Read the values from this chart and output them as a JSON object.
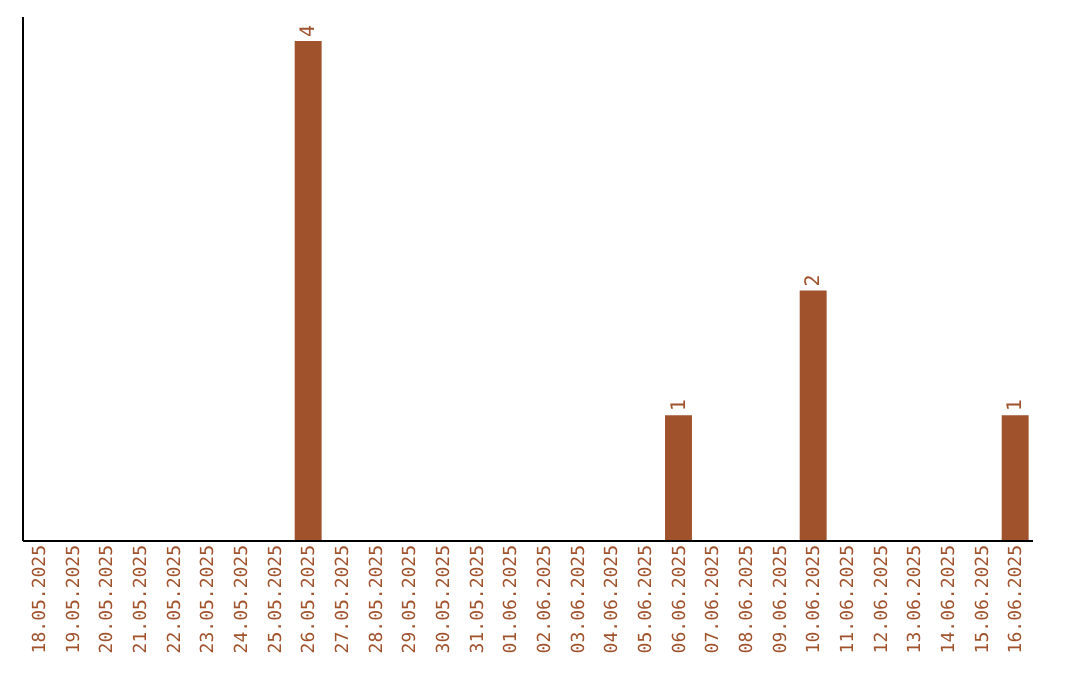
{
  "chart_data": {
    "type": "bar",
    "categories": [
      "18.05.2025",
      "19.05.2025",
      "20.05.2025",
      "21.05.2025",
      "22.05.2025",
      "23.05.2025",
      "24.05.2025",
      "25.05.2025",
      "26.05.2025",
      "27.05.2025",
      "28.05.2025",
      "29.05.2025",
      "30.05.2025",
      "31.05.2025",
      "01.06.2025",
      "02.06.2025",
      "03.06.2025",
      "04.06.2025",
      "05.06.2025",
      "06.06.2025",
      "07.06.2025",
      "08.06.2025",
      "09.06.2025",
      "10.06.2025",
      "11.06.2025",
      "12.06.2025",
      "13.06.2025",
      "14.06.2025",
      "15.06.2025",
      "16.06.2025"
    ],
    "values": [
      0,
      0,
      0,
      0,
      0,
      0,
      0,
      0,
      4,
      0,
      0,
      0,
      0,
      0,
      0,
      0,
      0,
      0,
      0,
      1,
      0,
      0,
      0,
      2,
      0,
      0,
      0,
      0,
      0,
      1
    ],
    "value_labels": [
      null,
      null,
      null,
      null,
      null,
      null,
      null,
      null,
      "4",
      null,
      null,
      null,
      null,
      null,
      null,
      null,
      null,
      null,
      null,
      "1",
      null,
      null,
      null,
      "2",
      null,
      null,
      null,
      null,
      null,
      "1"
    ],
    "color": "#a0522d",
    "ylim": [
      0,
      4.2
    ],
    "tick_labels": "x",
    "grid": false
  }
}
